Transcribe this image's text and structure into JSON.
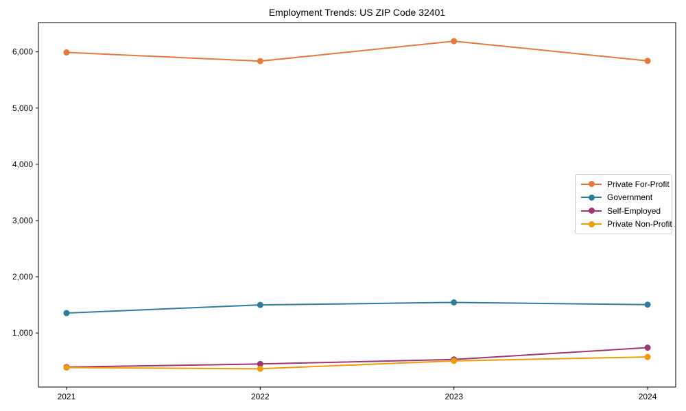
{
  "chart_data": {
    "type": "line",
    "title": "Employment Trends: US ZIP Code 32401",
    "categories": [
      "2021",
      "2022",
      "2023",
      "2024"
    ],
    "series": [
      {
        "name": "Private For-Profit",
        "color": "#e8783c",
        "values": [
          5990,
          5835,
          6190,
          5840
        ]
      },
      {
        "name": "Government",
        "color": "#2d7f9e",
        "values": [
          1355,
          1500,
          1545,
          1505
        ]
      },
      {
        "name": "Self-Employed",
        "color": "#a13571",
        "values": [
          395,
          450,
          530,
          740
        ]
      },
      {
        "name": "Private Non-Profit",
        "color": "#f09b08",
        "values": [
          385,
          365,
          505,
          575
        ]
      }
    ],
    "y_ticks": [
      1000,
      2000,
      3000,
      4000,
      5000,
      6000
    ],
    "y_tick_labels": [
      "1,000",
      "2,000",
      "3,000",
      "4,000",
      "5,000",
      "6,000"
    ],
    "ylim": [
      40,
      6520
    ],
    "xlim": [
      -0.145,
      3.145
    ],
    "grid": false,
    "legend_position": "center right",
    "axis_color": "#000000",
    "background_color": "#ffffff"
  }
}
